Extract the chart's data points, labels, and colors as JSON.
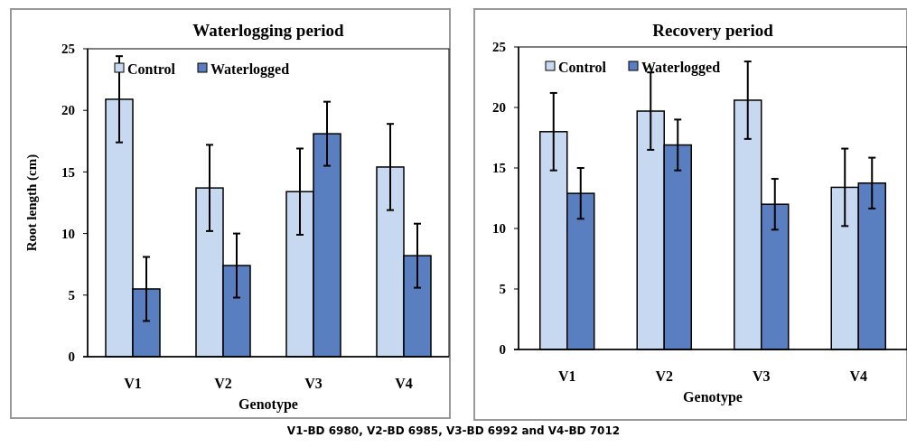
{
  "chart_data": [
    {
      "type": "bar",
      "title": "Waterlogging period",
      "xlabel": "Genotype",
      "ylabel": "Root length (cm)",
      "categories": [
        "V1",
        "V2",
        "V3",
        "V4"
      ],
      "series": [
        {
          "name": "Control",
          "color": "#c6d9f1",
          "values": [
            20.9,
            13.7,
            13.4,
            15.4
          ],
          "errors": [
            3.5,
            3.5,
            3.5,
            3.5
          ]
        },
        {
          "name": "Waterlogged",
          "color": "#5a7fc0",
          "values": [
            5.5,
            7.4,
            18.1,
            8.2
          ],
          "errors": [
            2.6,
            2.6,
            2.6,
            2.6
          ]
        }
      ],
      "ylim": [
        0,
        25
      ],
      "yticks": [
        0,
        5,
        10,
        15,
        20,
        25
      ],
      "grid": false,
      "legend": "top left",
      "annotations": [
        "V1-BD 6980, V2-BD 6985, V3-BD 6992 and V4-BD 7012"
      ]
    },
    {
      "type": "bar",
      "title": "Recovery period",
      "xlabel": "Genotype",
      "categories": [
        "V1",
        "V2",
        "V3",
        "V4"
      ],
      "series": [
        {
          "name": "Control",
          "color": "#c6d9f1",
          "values": [
            18.0,
            19.7,
            20.6,
            13.4
          ],
          "errors": [
            3.2,
            3.2,
            3.2,
            3.2
          ]
        },
        {
          "name": "Waterlogged",
          "color": "#5a7fc0",
          "values": [
            12.9,
            16.9,
            12.0,
            13.75
          ],
          "errors": [
            2.1,
            2.1,
            2.1,
            2.1
          ]
        }
      ],
      "ylim": [
        0,
        25
      ],
      "yticks": [
        0,
        5,
        10,
        15,
        20,
        25
      ],
      "grid": false,
      "legend": "top left"
    }
  ]
}
